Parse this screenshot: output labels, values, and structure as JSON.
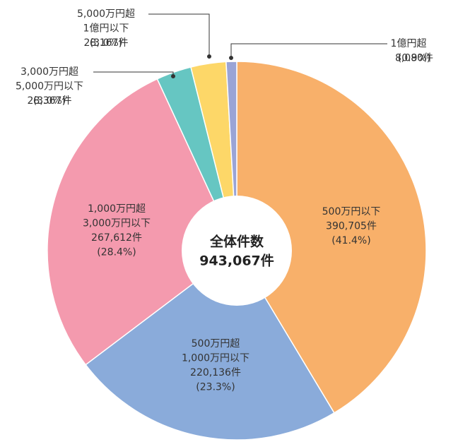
{
  "chart_data": {
    "type": "pie",
    "categories": [
      [
        "500万円以下"
      ],
      [
        "500万円超",
        "1,000万円以下"
      ],
      [
        "1,000万円超",
        "3,000万円以下"
      ],
      [
        "3,000万円超",
        "5,000万円以下"
      ],
      [
        "5,000万円超",
        "1億円以下"
      ],
      [
        "1億円超"
      ]
    ],
    "values": [
      41.4,
      23.3,
      28.4,
      3.0,
      3.0,
      0.9
    ],
    "value_labels": [
      "(41.4%)",
      "(23.3%)",
      "(28.4%)",
      "(3.0%)",
      "(3.0%)",
      "(0.9%)"
    ],
    "counts": [
      390705,
      220136,
      267612,
      28367,
      28167,
      8080
    ],
    "count_labels": [
      "390,705件",
      "220,136件",
      "267,612件",
      "28,367件",
      "28,167件",
      "8,080件"
    ],
    "colors": [
      "#f8b06a",
      "#8aabda",
      "#f49aae",
      "#66c6c2",
      "#fdd768",
      "#9aa4d6"
    ],
    "center_text": [
      "全体件数",
      "943,067件"
    ]
  }
}
